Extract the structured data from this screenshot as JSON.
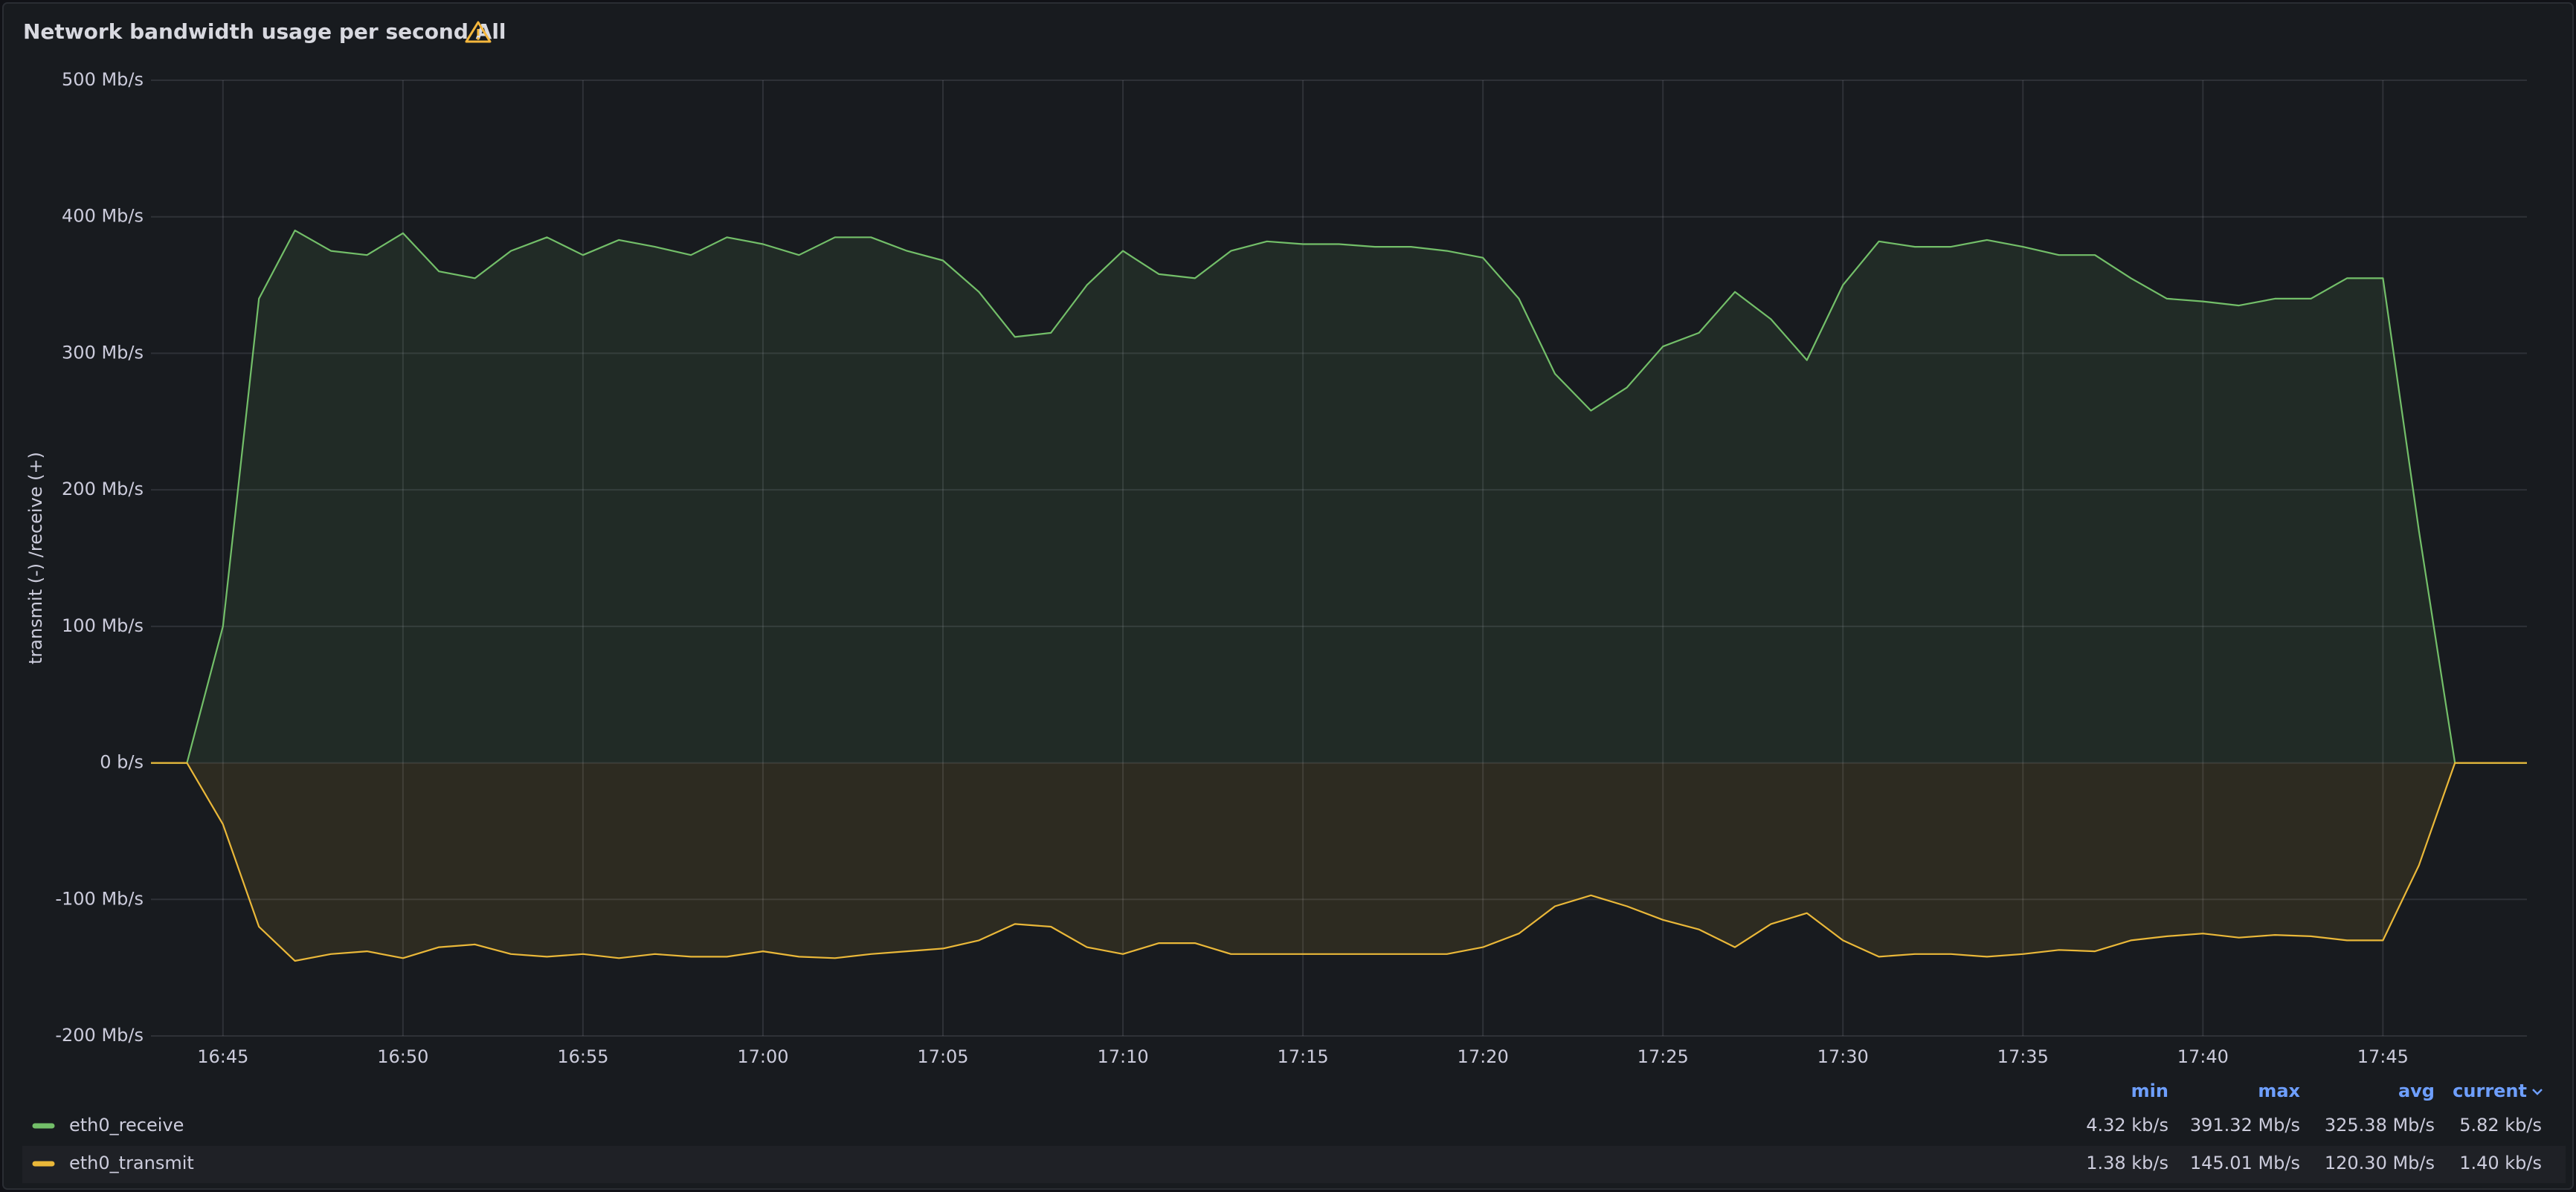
{
  "chart_data": {
    "type": "line",
    "title": "Network bandwidth usage per second All",
    "y_label": "transmit  (-)  /receive  (+)",
    "x": [
      "16:43",
      "16:44",
      "16:45",
      "16:46",
      "16:47",
      "16:48",
      "16:49",
      "16:50",
      "16:51",
      "16:52",
      "16:53",
      "16:54",
      "16:55",
      "16:56",
      "16:57",
      "16:58",
      "16:59",
      "17:00",
      "17:01",
      "17:02",
      "17:03",
      "17:04",
      "17:05",
      "17:06",
      "17:07",
      "17:08",
      "17:09",
      "17:10",
      "17:11",
      "17:12",
      "17:13",
      "17:14",
      "17:15",
      "17:16",
      "17:17",
      "17:18",
      "17:19",
      "17:20",
      "17:21",
      "17:22",
      "17:23",
      "17:24",
      "17:25",
      "17:26",
      "17:27",
      "17:28",
      "17:29",
      "17:30",
      "17:31",
      "17:32",
      "17:33",
      "17:34",
      "17:35",
      "17:36",
      "17:37",
      "17:38",
      "17:39",
      "17:40",
      "17:41",
      "17:42",
      "17:43",
      "17:44",
      "17:45",
      "17:46",
      "17:47",
      "17:48",
      "17:49"
    ],
    "xlim": [
      "16:43",
      "17:49"
    ],
    "xticks": [
      "16:45",
      "16:50",
      "16:55",
      "17:00",
      "17:05",
      "17:10",
      "17:15",
      "17:20",
      "17:25",
      "17:30",
      "17:35",
      "17:40",
      "17:45"
    ],
    "ylim": [
      -200,
      500
    ],
    "yticks": [
      {
        "value": -200,
        "label": "-200 Mb/s"
      },
      {
        "value": -100,
        "label": "-100 Mb/s"
      },
      {
        "value": 0,
        "label": "0 b/s"
      },
      {
        "value": 100,
        "label": "100 Mb/s"
      },
      {
        "value": 200,
        "label": "200 Mb/s"
      },
      {
        "value": 300,
        "label": "300 Mb/s"
      },
      {
        "value": 400,
        "label": "400 Mb/s"
      },
      {
        "value": 500,
        "label": "500 Mb/s"
      }
    ],
    "grid": true,
    "legend_columns": [
      "min",
      "max",
      "avg",
      "current"
    ],
    "series": [
      {
        "name": "eth0_receive",
        "color": "#73bf69",
        "stats": [
          "4.32 kb/s",
          "391.32 Mb/s",
          "325.38 Mb/s",
          "5.82 kb/s"
        ],
        "values": [
          0,
          0,
          100,
          340,
          390,
          375,
          372,
          388,
          360,
          355,
          375,
          385,
          372,
          383,
          378,
          372,
          385,
          380,
          372,
          385,
          385,
          375,
          368,
          345,
          312,
          315,
          350,
          375,
          358,
          355,
          375,
          382,
          380,
          380,
          378,
          378,
          375,
          370,
          340,
          285,
          258,
          275,
          305,
          315,
          345,
          325,
          295,
          350,
          382,
          378,
          378,
          383,
          378,
          372,
          372,
          355,
          340,
          338,
          335,
          340,
          340,
          355,
          355,
          170,
          0,
          0,
          0
        ]
      },
      {
        "name": "eth0_transmit",
        "color": "#eab839",
        "stats": [
          "1.38 kb/s",
          "145.01 Mb/s",
          "120.30 Mb/s",
          "1.40 kb/s"
        ],
        "values": [
          0,
          0,
          -45,
          -120,
          -145,
          -140,
          -138,
          -143,
          -135,
          -133,
          -140,
          -142,
          -140,
          -143,
          -140,
          -142,
          -142,
          -138,
          -142,
          -143,
          -140,
          -138,
          -136,
          -130,
          -118,
          -120,
          -135,
          -140,
          -132,
          -132,
          -140,
          -140,
          -140,
          -140,
          -140,
          -140,
          -140,
          -135,
          -125,
          -105,
          -97,
          -105,
          -115,
          -122,
          -135,
          -118,
          -110,
          -130,
          -142,
          -140,
          -140,
          -142,
          -140,
          -137,
          -138,
          -130,
          -127,
          -125,
          -128,
          -126,
          -127,
          -130,
          -130,
          -75,
          0,
          0,
          0
        ]
      }
    ]
  }
}
